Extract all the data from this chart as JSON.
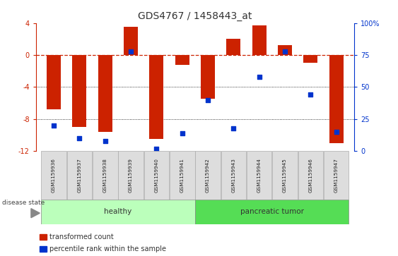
{
  "title": "GDS4767 / 1458443_at",
  "samples": [
    "GSM1159936",
    "GSM1159937",
    "GSM1159938",
    "GSM1159939",
    "GSM1159940",
    "GSM1159941",
    "GSM1159942",
    "GSM1159943",
    "GSM1159944",
    "GSM1159945",
    "GSM1159946",
    "GSM1159947"
  ],
  "bar_values": [
    -6.8,
    -9.0,
    -9.6,
    3.5,
    -10.5,
    -1.2,
    -5.5,
    2.0,
    3.7,
    1.2,
    -1.0,
    -11.0
  ],
  "percentile_values": [
    20,
    10,
    8,
    78,
    2,
    14,
    40,
    18,
    58,
    78,
    44,
    15
  ],
  "bar_color": "#cc2200",
  "dot_color": "#0033cc",
  "dashed_line_color": "#cc2200",
  "grid_color": "#000000",
  "ylim_left": [
    -12,
    4
  ],
  "ylim_right": [
    0,
    100
  ],
  "yticks_left": [
    -12,
    -8,
    -4,
    0,
    4
  ],
  "yticks_right": [
    0,
    25,
    50,
    75,
    100
  ],
  "healthy_count": 6,
  "healthy_color": "#bbffbb",
  "tumor_color": "#55dd55",
  "healthy_label": "healthy",
  "tumor_label": "pancreatic tumor",
  "disease_state_label": "disease state",
  "legend_bar_label": "transformed count",
  "legend_dot_label": "percentile rank within the sample",
  "bar_width": 0.55,
  "background_color": "#ffffff",
  "plot_bg_color": "#ffffff",
  "title_fontsize": 10,
  "tick_fontsize": 7,
  "label_fontsize": 7
}
